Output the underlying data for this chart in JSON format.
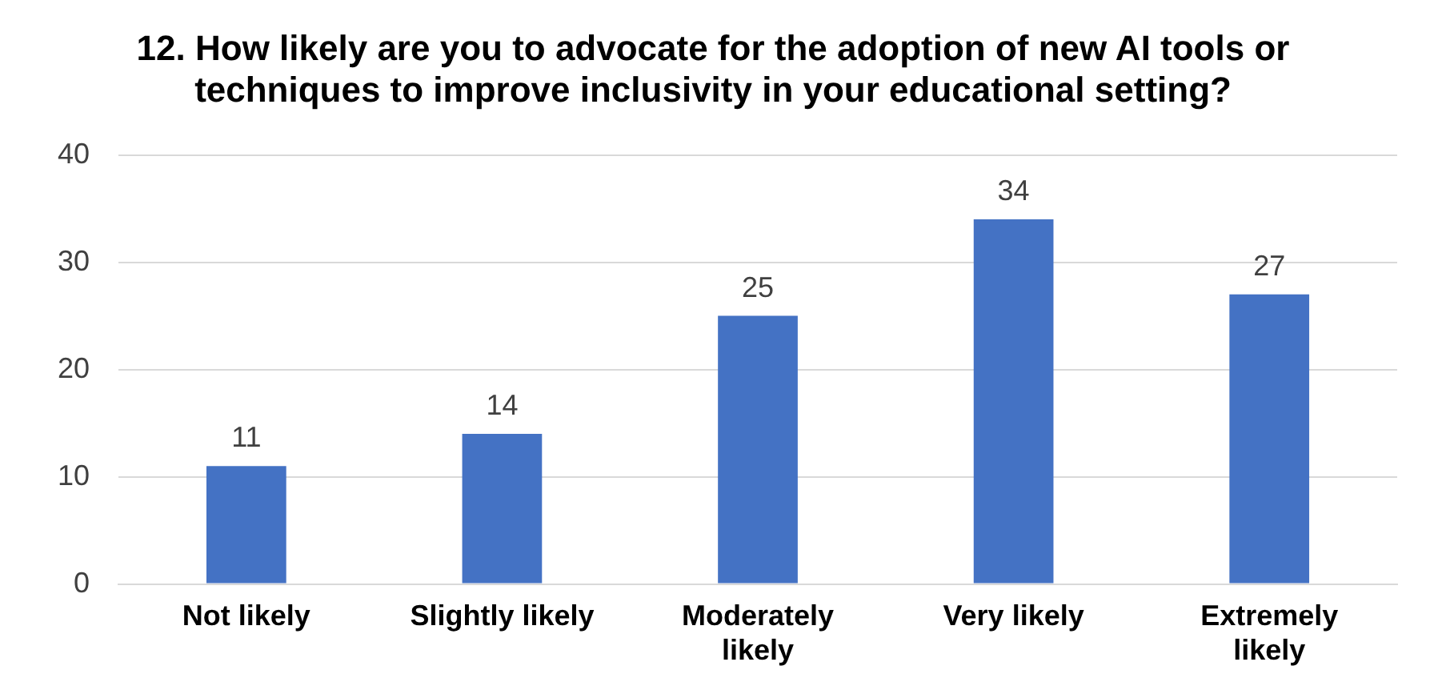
{
  "chart_data": {
    "type": "bar",
    "title": "12. How likely are you to advocate for the adoption of new AI tools or techniques to improve inclusivity in your educational setting?",
    "categories": [
      "Not likely",
      "Slightly likely",
      "Moderately likely",
      "Very likely",
      "Extremely likely"
    ],
    "values": [
      11,
      14,
      25,
      34,
      27
    ],
    "color": "#4472c4",
    "ylim": [
      0,
      40
    ],
    "yticks": [
      0,
      10,
      20,
      30,
      40
    ],
    "grid": "y",
    "data_labels": true,
    "legend": false
  }
}
